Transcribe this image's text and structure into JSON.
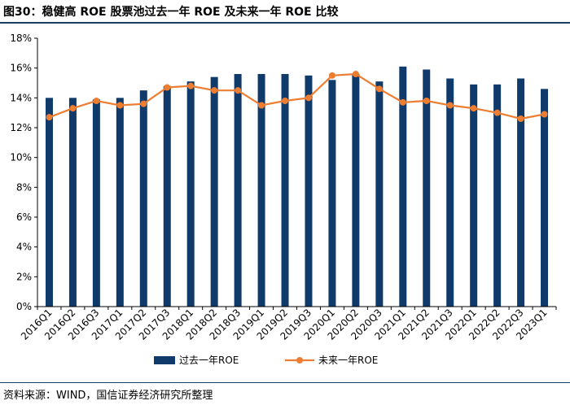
{
  "header": {
    "title": "图30：稳健高 ROE 股票池过去一年 ROE 及未来一年 ROE 比较"
  },
  "footer": {
    "source": "资料来源：WIND，国信证券经济研究所整理"
  },
  "colors": {
    "bar": "#0f3a69",
    "line": "#ed7d31",
    "rule": "#1f3e66"
  },
  "chart_data": {
    "type": "bar",
    "title": "",
    "xlabel": "",
    "ylabel": "",
    "ylim": [
      0,
      18
    ],
    "yticks": [
      "0%",
      "2%",
      "4%",
      "6%",
      "8%",
      "10%",
      "12%",
      "14%",
      "16%",
      "18%"
    ],
    "grid": false,
    "legend_position": "bottom",
    "categories": [
      "2016Q1",
      "2016Q2",
      "2016Q3",
      "2017Q1",
      "2017Q2",
      "2017Q3",
      "2018Q1",
      "2018Q2",
      "2018Q3",
      "2019Q1",
      "2019Q2",
      "2019Q3",
      "2020Q1",
      "2020Q2",
      "2020Q3",
      "2021Q1",
      "2021Q2",
      "2021Q3",
      "2022Q1",
      "2022Q2",
      "2022Q3",
      "2023Q1"
    ],
    "series": [
      {
        "name": "过去一年ROE",
        "type": "bar",
        "values": [
          14.0,
          14.0,
          13.9,
          14.0,
          14.5,
          14.8,
          15.1,
          15.4,
          15.6,
          15.6,
          15.6,
          15.5,
          15.2,
          15.6,
          15.1,
          16.1,
          15.9,
          15.3,
          14.9,
          14.9,
          15.3,
          14.6
        ]
      },
      {
        "name": "未来一年ROE",
        "type": "line",
        "values": [
          12.7,
          13.3,
          13.8,
          13.5,
          13.6,
          14.7,
          14.8,
          14.5,
          14.5,
          13.5,
          13.8,
          14.0,
          15.5,
          15.6,
          14.6,
          13.7,
          13.8,
          13.5,
          13.3,
          13.0,
          12.6,
          12.9
        ]
      }
    ]
  }
}
